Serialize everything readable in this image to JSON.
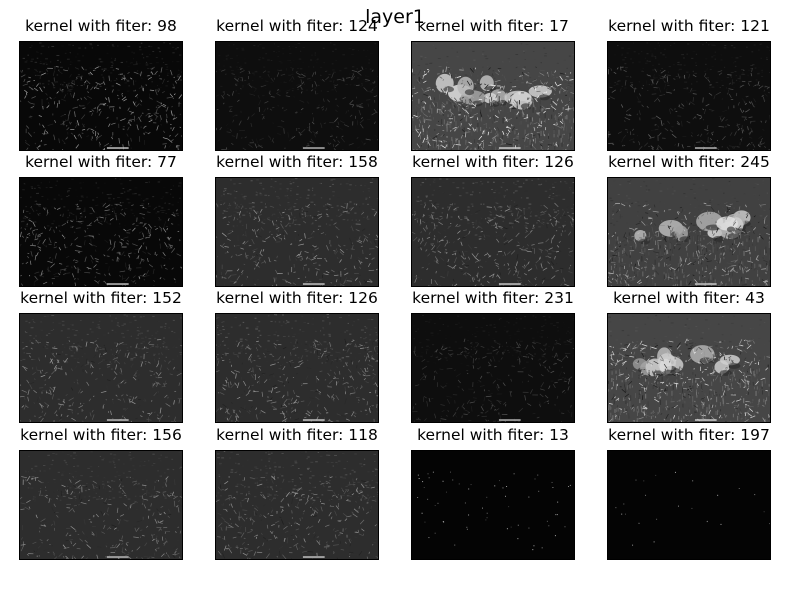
{
  "figure": {
    "title": "layer1",
    "panels": [
      {
        "label": "kernel with fiter: 98",
        "kind": "edges-sparse",
        "brightness": 0.35
      },
      {
        "label": "kernel with fiter: 124",
        "kind": "dark-edges",
        "brightness": 0.15
      },
      {
        "label": "kernel with fiter: 17",
        "kind": "scene-gray",
        "brightness": 0.55
      },
      {
        "label": "kernel with fiter: 121",
        "kind": "dark-edges",
        "brightness": 0.2
      },
      {
        "label": "kernel with fiter: 77",
        "kind": "edges-sparse",
        "brightness": 0.3
      },
      {
        "label": "kernel with fiter: 158",
        "kind": "emboss",
        "brightness": 0.35
      },
      {
        "label": "kernel with fiter: 126",
        "kind": "emboss",
        "brightness": 0.4
      },
      {
        "label": "kernel with fiter: 245",
        "kind": "scene-mid",
        "brightness": 0.4
      },
      {
        "label": "kernel with fiter: 152",
        "kind": "emboss",
        "brightness": 0.28
      },
      {
        "label": "kernel with fiter: 126",
        "kind": "emboss",
        "brightness": 0.4
      },
      {
        "label": "kernel with fiter: 231",
        "kind": "dark-edges",
        "brightness": 0.15
      },
      {
        "label": "kernel with fiter: 43",
        "kind": "scene-gray",
        "brightness": 0.5
      },
      {
        "label": "kernel with fiter: 156",
        "kind": "emboss",
        "brightness": 0.25
      },
      {
        "label": "kernel with fiter: 118",
        "kind": "emboss",
        "brightness": 0.35
      },
      {
        "label": "kernel with fiter: 13",
        "kind": "near-black",
        "brightness": 0.08
      },
      {
        "label": "kernel with fiter: 197",
        "kind": "near-black",
        "brightness": 0.03
      }
    ]
  }
}
